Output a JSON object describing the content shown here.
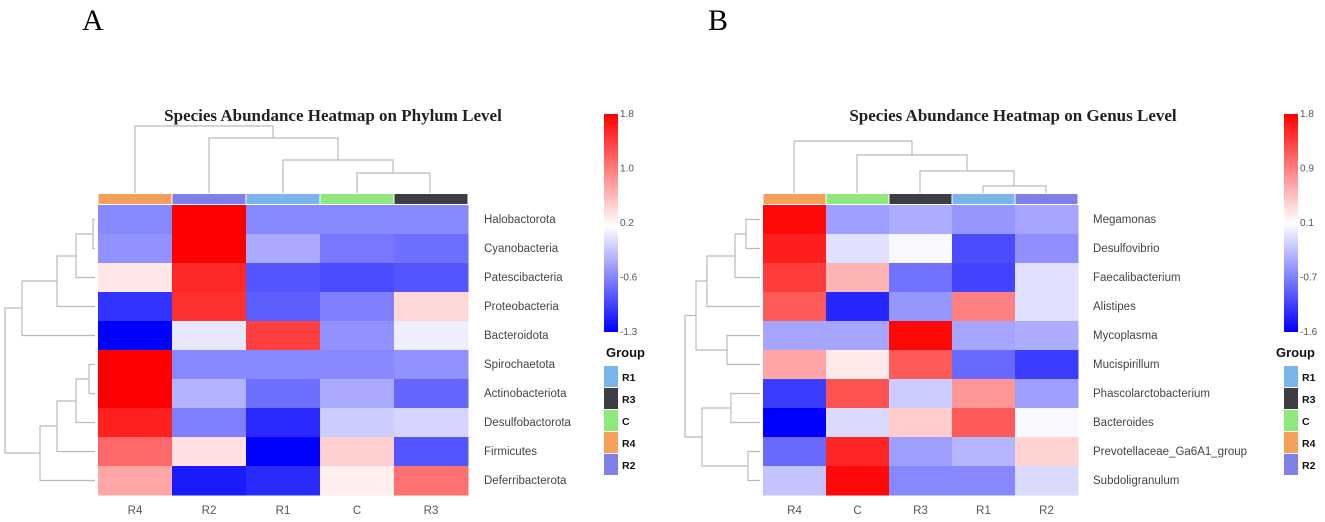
{
  "chart_data": [
    {
      "panel": "A",
      "type": "heatmap",
      "title": "Species Abundance Heatmap on Phylum Level",
      "columns": [
        "R4",
        "R2",
        "R1",
        "C",
        "R3"
      ],
      "rows": [
        "Halobactorota",
        "Cyanobacteria",
        "Patescibacteria",
        "Proteobacteria",
        "Bacteroidota",
        "Spirochaetota",
        "Actinobacteriota",
        "Desulfobactorota",
        "Firmicutes",
        "Deferribacterota"
      ],
      "values": [
        [
          -0.5,
          1.8,
          -0.5,
          -0.5,
          -0.5
        ],
        [
          -0.45,
          1.8,
          -0.3,
          -0.6,
          -0.65
        ],
        [
          0.35,
          1.55,
          -0.8,
          -0.85,
          -0.8
        ],
        [
          -1.0,
          1.5,
          -0.75,
          -0.55,
          0.45
        ],
        [
          -1.3,
          0.05,
          1.4,
          -0.45,
          0.1
        ],
        [
          1.8,
          -0.5,
          -0.5,
          -0.5,
          -0.45
        ],
        [
          1.8,
          -0.25,
          -0.65,
          -0.3,
          -0.7
        ],
        [
          1.6,
          -0.55,
          -1.05,
          -0.1,
          -0.05
        ],
        [
          1.15,
          0.4,
          -1.3,
          0.5,
          -0.8
        ],
        [
          0.75,
          -1.15,
          -1.05,
          0.3,
          1.1
        ]
      ],
      "colorbar": {
        "min": -1.3,
        "mid": 0.2,
        "max": 1.8,
        "ticks": [
          "1.8",
          "1.0",
          "0.2",
          "-0.6",
          "-1.3"
        ]
      },
      "column_groups": [
        "R4",
        "R2",
        "R1",
        "C",
        "R3"
      ]
    },
    {
      "panel": "B",
      "type": "heatmap",
      "title": "Species Abundance Heatmap on Genus Level",
      "columns": [
        "R4",
        "C",
        "R3",
        "R1",
        "R2"
      ],
      "rows": [
        "Megamonas",
        "Desulfovibrio",
        "Faecalibacterium",
        "Alistipes",
        "Mycoplasma",
        "Mucispirillum",
        "Phascolarctobacterium",
        "Bacteroides",
        "Prevotellaceae_Ga6A1_group",
        "Subdoligranulum"
      ],
      "values": [
        [
          1.75,
          -0.55,
          -0.45,
          -0.6,
          -0.5
        ],
        [
          1.6,
          -0.1,
          0.05,
          -1.1,
          -0.65
        ],
        [
          1.4,
          0.6,
          -0.85,
          -1.15,
          -0.1
        ],
        [
          1.2,
          -1.35,
          -0.6,
          0.95,
          -0.1
        ],
        [
          -0.5,
          -0.5,
          1.75,
          -0.5,
          -0.45
        ],
        [
          0.7,
          0.25,
          1.2,
          -0.9,
          -1.2
        ],
        [
          -1.2,
          1.25,
          -0.25,
          0.8,
          -0.55
        ],
        [
          -1.6,
          -0.15,
          0.45,
          1.2,
          0.05
        ],
        [
          -0.9,
          1.55,
          -0.55,
          -0.4,
          0.4
        ],
        [
          -0.3,
          1.75,
          -0.7,
          -0.7,
          -0.15
        ]
      ],
      "colorbar": {
        "min": -1.6,
        "mid": 0.1,
        "max": 1.8,
        "ticks": [
          "1.8",
          "0.9",
          "0.1",
          "-0.7",
          "-1.6"
        ]
      },
      "column_groups": [
        "R4",
        "C",
        "R3",
        "R1",
        "R2"
      ]
    }
  ],
  "legend": {
    "title": "Group",
    "items": [
      "R1",
      "R3",
      "C",
      "R4",
      "R2"
    ]
  },
  "group_colors": {
    "R1": "#7ab4ea",
    "R3": "#3d3d44",
    "C": "#8fe87c",
    "R4": "#f5a05a",
    "R2": "#7f7fe8"
  }
}
